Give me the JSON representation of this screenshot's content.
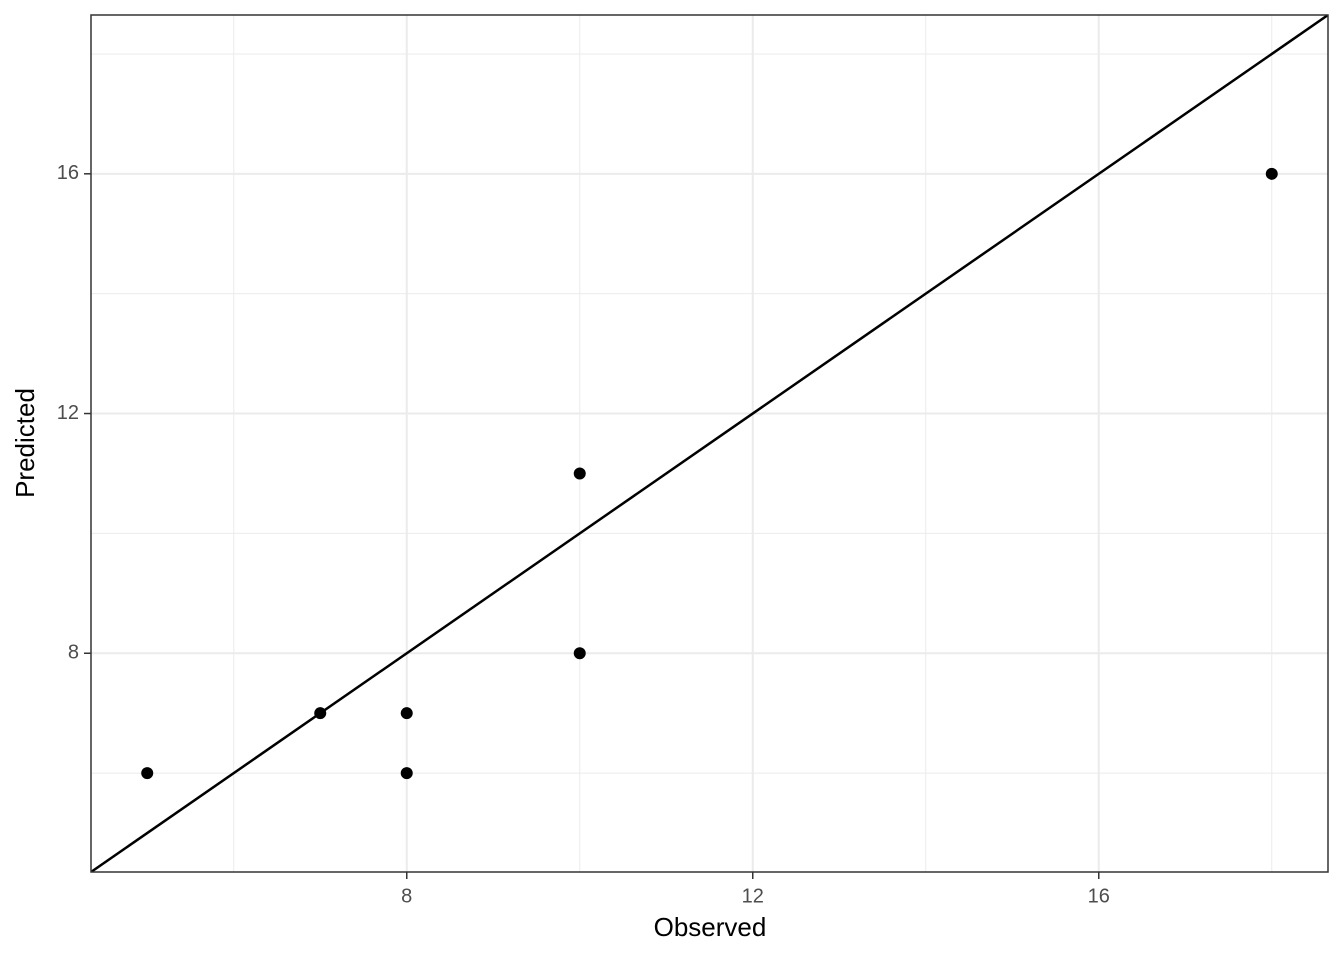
{
  "chart_data": {
    "type": "scatter",
    "x_label": "Observed",
    "y_label": "Predicted",
    "x": [
      5,
      7,
      8,
      8,
      10,
      10,
      18
    ],
    "y": [
      6,
      7,
      7,
      6,
      11,
      8,
      16
    ],
    "color": "#000000",
    "xlim": [
      4.35,
      18.65
    ],
    "ylim": [
      4.35,
      18.65
    ],
    "xticks": [
      8,
      12,
      16
    ],
    "yticks": [
      8,
      12,
      16
    ],
    "x_minor_ticks": [
      6,
      10,
      14,
      18
    ],
    "y_minor_ticks": [
      6,
      10,
      14,
      18
    ],
    "grid": true,
    "reference_line": {
      "slope": 1,
      "intercept": 0
    }
  }
}
